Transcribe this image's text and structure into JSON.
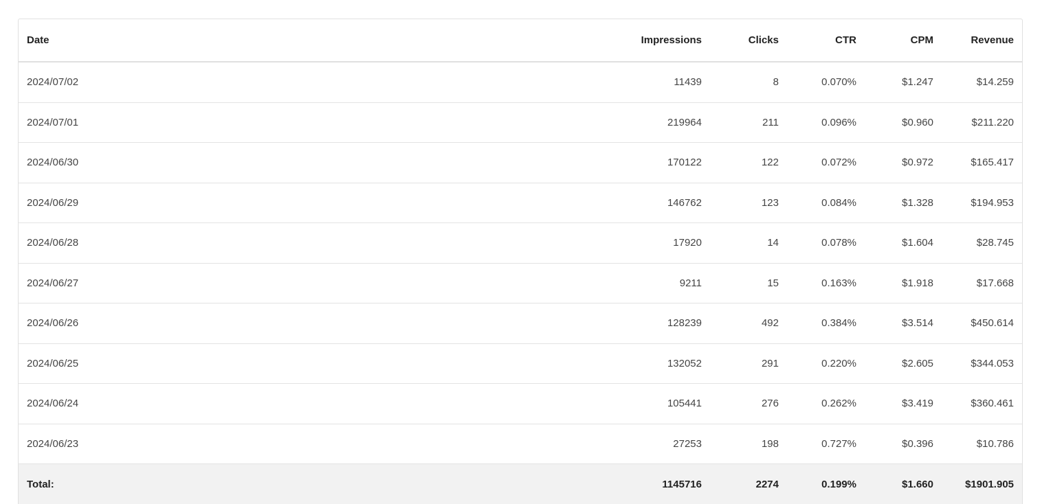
{
  "table": {
    "columns": [
      "Date",
      "Impressions",
      "Clicks",
      "CTR",
      "CPM",
      "Revenue"
    ],
    "rows": [
      [
        "2024/07/02",
        "11439",
        "8",
        "0.070%",
        "$1.247",
        "$14.259"
      ],
      [
        "2024/07/01",
        "219964",
        "211",
        "0.096%",
        "$0.960",
        "$211.220"
      ],
      [
        "2024/06/30",
        "170122",
        "122",
        "0.072%",
        "$0.972",
        "$165.417"
      ],
      [
        "2024/06/29",
        "146762",
        "123",
        "0.084%",
        "$1.328",
        "$194.953"
      ],
      [
        "2024/06/28",
        "17920",
        "14",
        "0.078%",
        "$1.604",
        "$28.745"
      ],
      [
        "2024/06/27",
        "9211",
        "15",
        "0.163%",
        "$1.918",
        "$17.668"
      ],
      [
        "2024/06/26",
        "128239",
        "492",
        "0.384%",
        "$3.514",
        "$450.614"
      ],
      [
        "2024/06/25",
        "132052",
        "291",
        "0.220%",
        "$2.605",
        "$344.053"
      ],
      [
        "2024/06/24",
        "105441",
        "276",
        "0.262%",
        "$3.419",
        "$360.461"
      ],
      [
        "2024/06/23",
        "27253",
        "198",
        "0.727%",
        "$0.396",
        "$10.786"
      ]
    ],
    "total": [
      "Total:",
      "1145716",
      "2274",
      "0.199%",
      "$1.660",
      "$1901.905"
    ]
  }
}
